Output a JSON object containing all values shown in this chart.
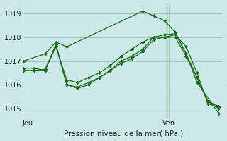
{
  "background_color": "#cce8e8",
  "grid_color": "#88bbbb",
  "line_color": "#1a6e1a",
  "title": "Pression niveau de la mer( hPa )",
  "ylim": [
    1014.6,
    1019.4
  ],
  "yticks": [
    1015,
    1016,
    1017,
    1018,
    1019
  ],
  "series": [
    {
      "x": [
        0,
        1.0,
        1.5,
        2.0,
        5.5,
        6.0,
        6.5,
        7.0,
        7.5,
        8.0,
        9.0
      ],
      "y": [
        1017.0,
        1017.3,
        1017.8,
        1017.6,
        1019.1,
        1018.9,
        1018.7,
        1018.2,
        1017.3,
        1016.1,
        1014.8
      ]
    },
    {
      "x": [
        0,
        0.5,
        1.0,
        1.5,
        2.0,
        2.5,
        3.0,
        3.5,
        4.0,
        4.5,
        5.0,
        5.5,
        6.0,
        6.5,
        7.0,
        7.5,
        8.0,
        8.5,
        9.0
      ],
      "y": [
        1016.7,
        1016.7,
        1016.6,
        1017.6,
        1016.2,
        1016.1,
        1016.3,
        1016.5,
        1016.8,
        1017.2,
        1017.5,
        1017.8,
        1018.0,
        1018.0,
        1018.1,
        1017.6,
        1016.5,
        1015.2,
        1015.05
      ]
    },
    {
      "x": [
        0,
        0.5,
        1.0,
        1.5,
        2.0,
        2.5,
        3.0,
        3.5,
        4.0,
        4.5,
        5.0,
        5.5,
        6.0,
        6.5,
        7.0,
        7.5,
        8.0,
        8.5,
        9.0
      ],
      "y": [
        1016.6,
        1016.6,
        1016.6,
        1017.7,
        1016.0,
        1015.9,
        1016.1,
        1016.3,
        1016.6,
        1016.9,
        1017.1,
        1017.4,
        1017.9,
        1018.0,
        1018.0,
        1017.2,
        1016.3,
        1015.3,
        1015.1
      ]
    },
    {
      "x": [
        0,
        0.5,
        1.0,
        1.5,
        2.0,
        2.5,
        3.0,
        3.5,
        4.0,
        4.5,
        5.0,
        5.5,
        6.0,
        6.5,
        7.0,
        7.5,
        8.0,
        8.5,
        9.0
      ],
      "y": [
        1016.6,
        1016.6,
        1016.65,
        1017.65,
        1016.0,
        1015.85,
        1016.0,
        1016.3,
        1016.6,
        1017.0,
        1017.2,
        1017.5,
        1018.0,
        1018.1,
        1018.15,
        1017.3,
        1016.3,
        1015.3,
        1015.0
      ]
    }
  ],
  "ven_x": 6.6,
  "xlim": [
    0,
    9.2
  ],
  "jeu_x": 0.0,
  "xtick_positions": [
    0.2,
    6.7
  ],
  "xtick_labels": [
    "Jeu",
    "Ven"
  ]
}
